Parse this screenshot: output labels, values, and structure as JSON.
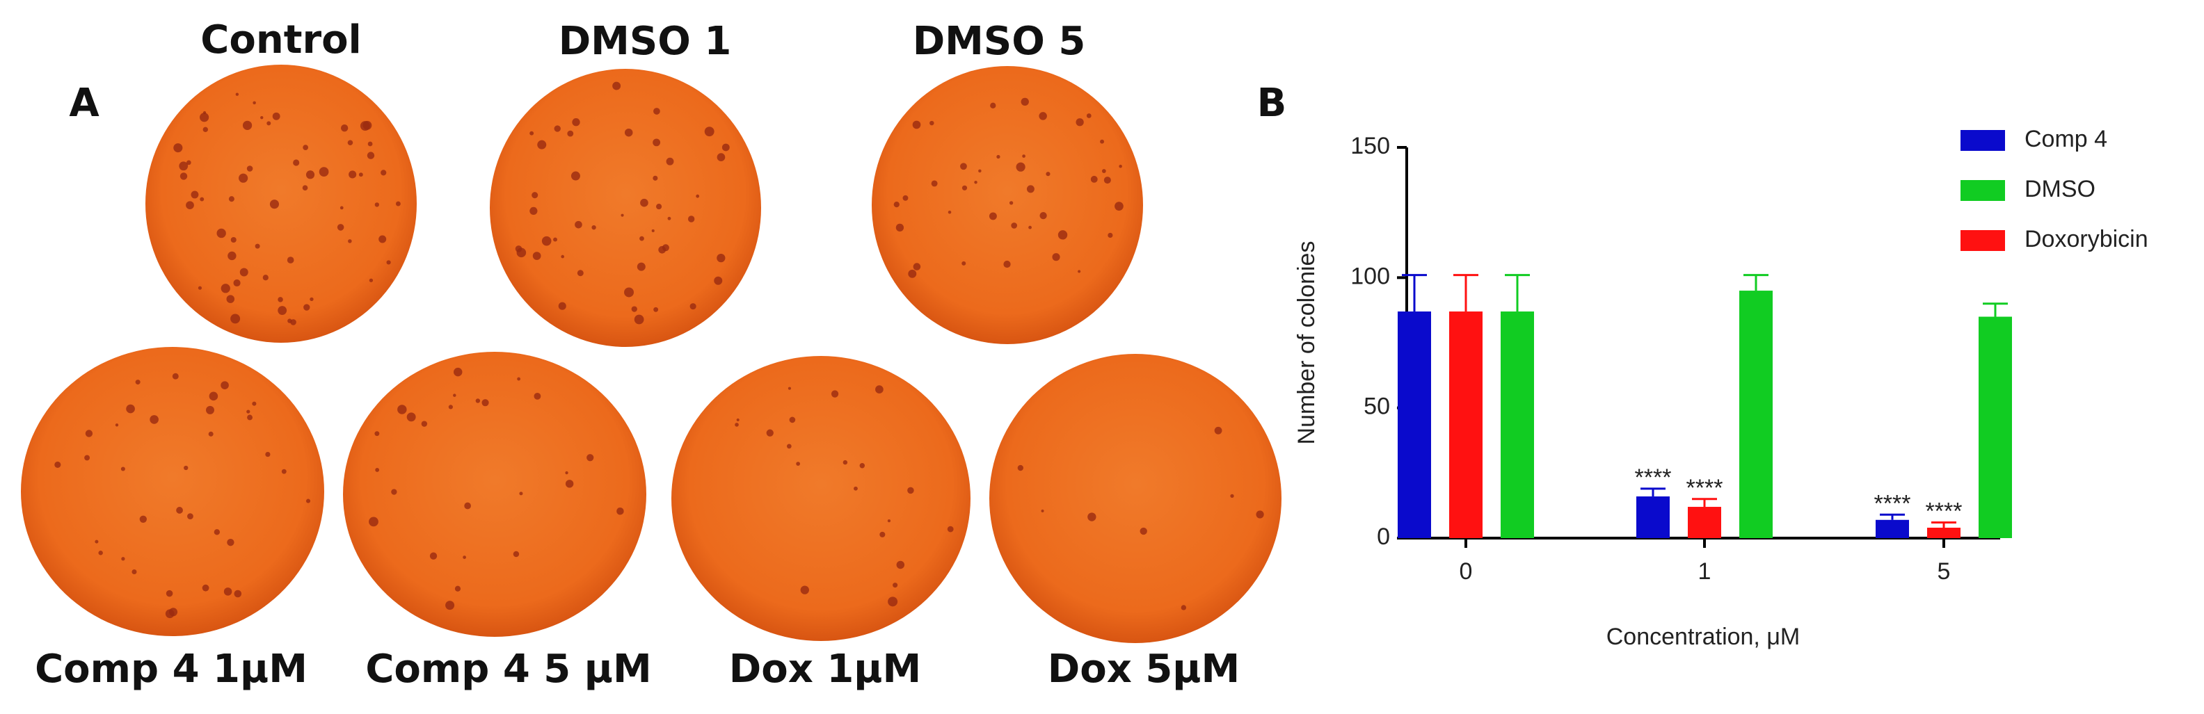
{
  "panel_a": {
    "label": "A",
    "top_labels": [
      "Control",
      "DMSO 1",
      "DMSO 5"
    ],
    "bottom_labels": [
      "Comp 4 1μM",
      "Comp 4 5 μM",
      "Dox 1μM",
      "Dox 5μM"
    ]
  },
  "chart_data": {
    "type": "bar",
    "panel_label": "B",
    "x_label": "Concentration, μM",
    "y_label": "Number of colonies",
    "categories": [
      "0",
      "1",
      "5"
    ],
    "series": [
      {
        "name": "Comp 4",
        "color": "#0a0acc",
        "values": [
          87,
          16,
          7
        ],
        "errors": [
          14,
          3,
          2
        ],
        "annotations": [
          null,
          "****",
          "****"
        ]
      },
      {
        "name": "DMSO",
        "color": "#11cc22",
        "values": [
          87,
          95,
          85
        ],
        "errors": [
          14,
          6,
          5
        ],
        "annotations": [
          null,
          null,
          null
        ]
      },
      {
        "name": "Doxorybicin",
        "color": "#ff1111",
        "values": [
          87,
          12,
          4
        ],
        "errors": [
          14,
          3,
          2
        ],
        "annotations": [
          null,
          "****",
          "****"
        ]
      }
    ],
    "ylim": [
      0,
      150
    ],
    "yticks": [
      0,
      50,
      100,
      150
    ]
  }
}
